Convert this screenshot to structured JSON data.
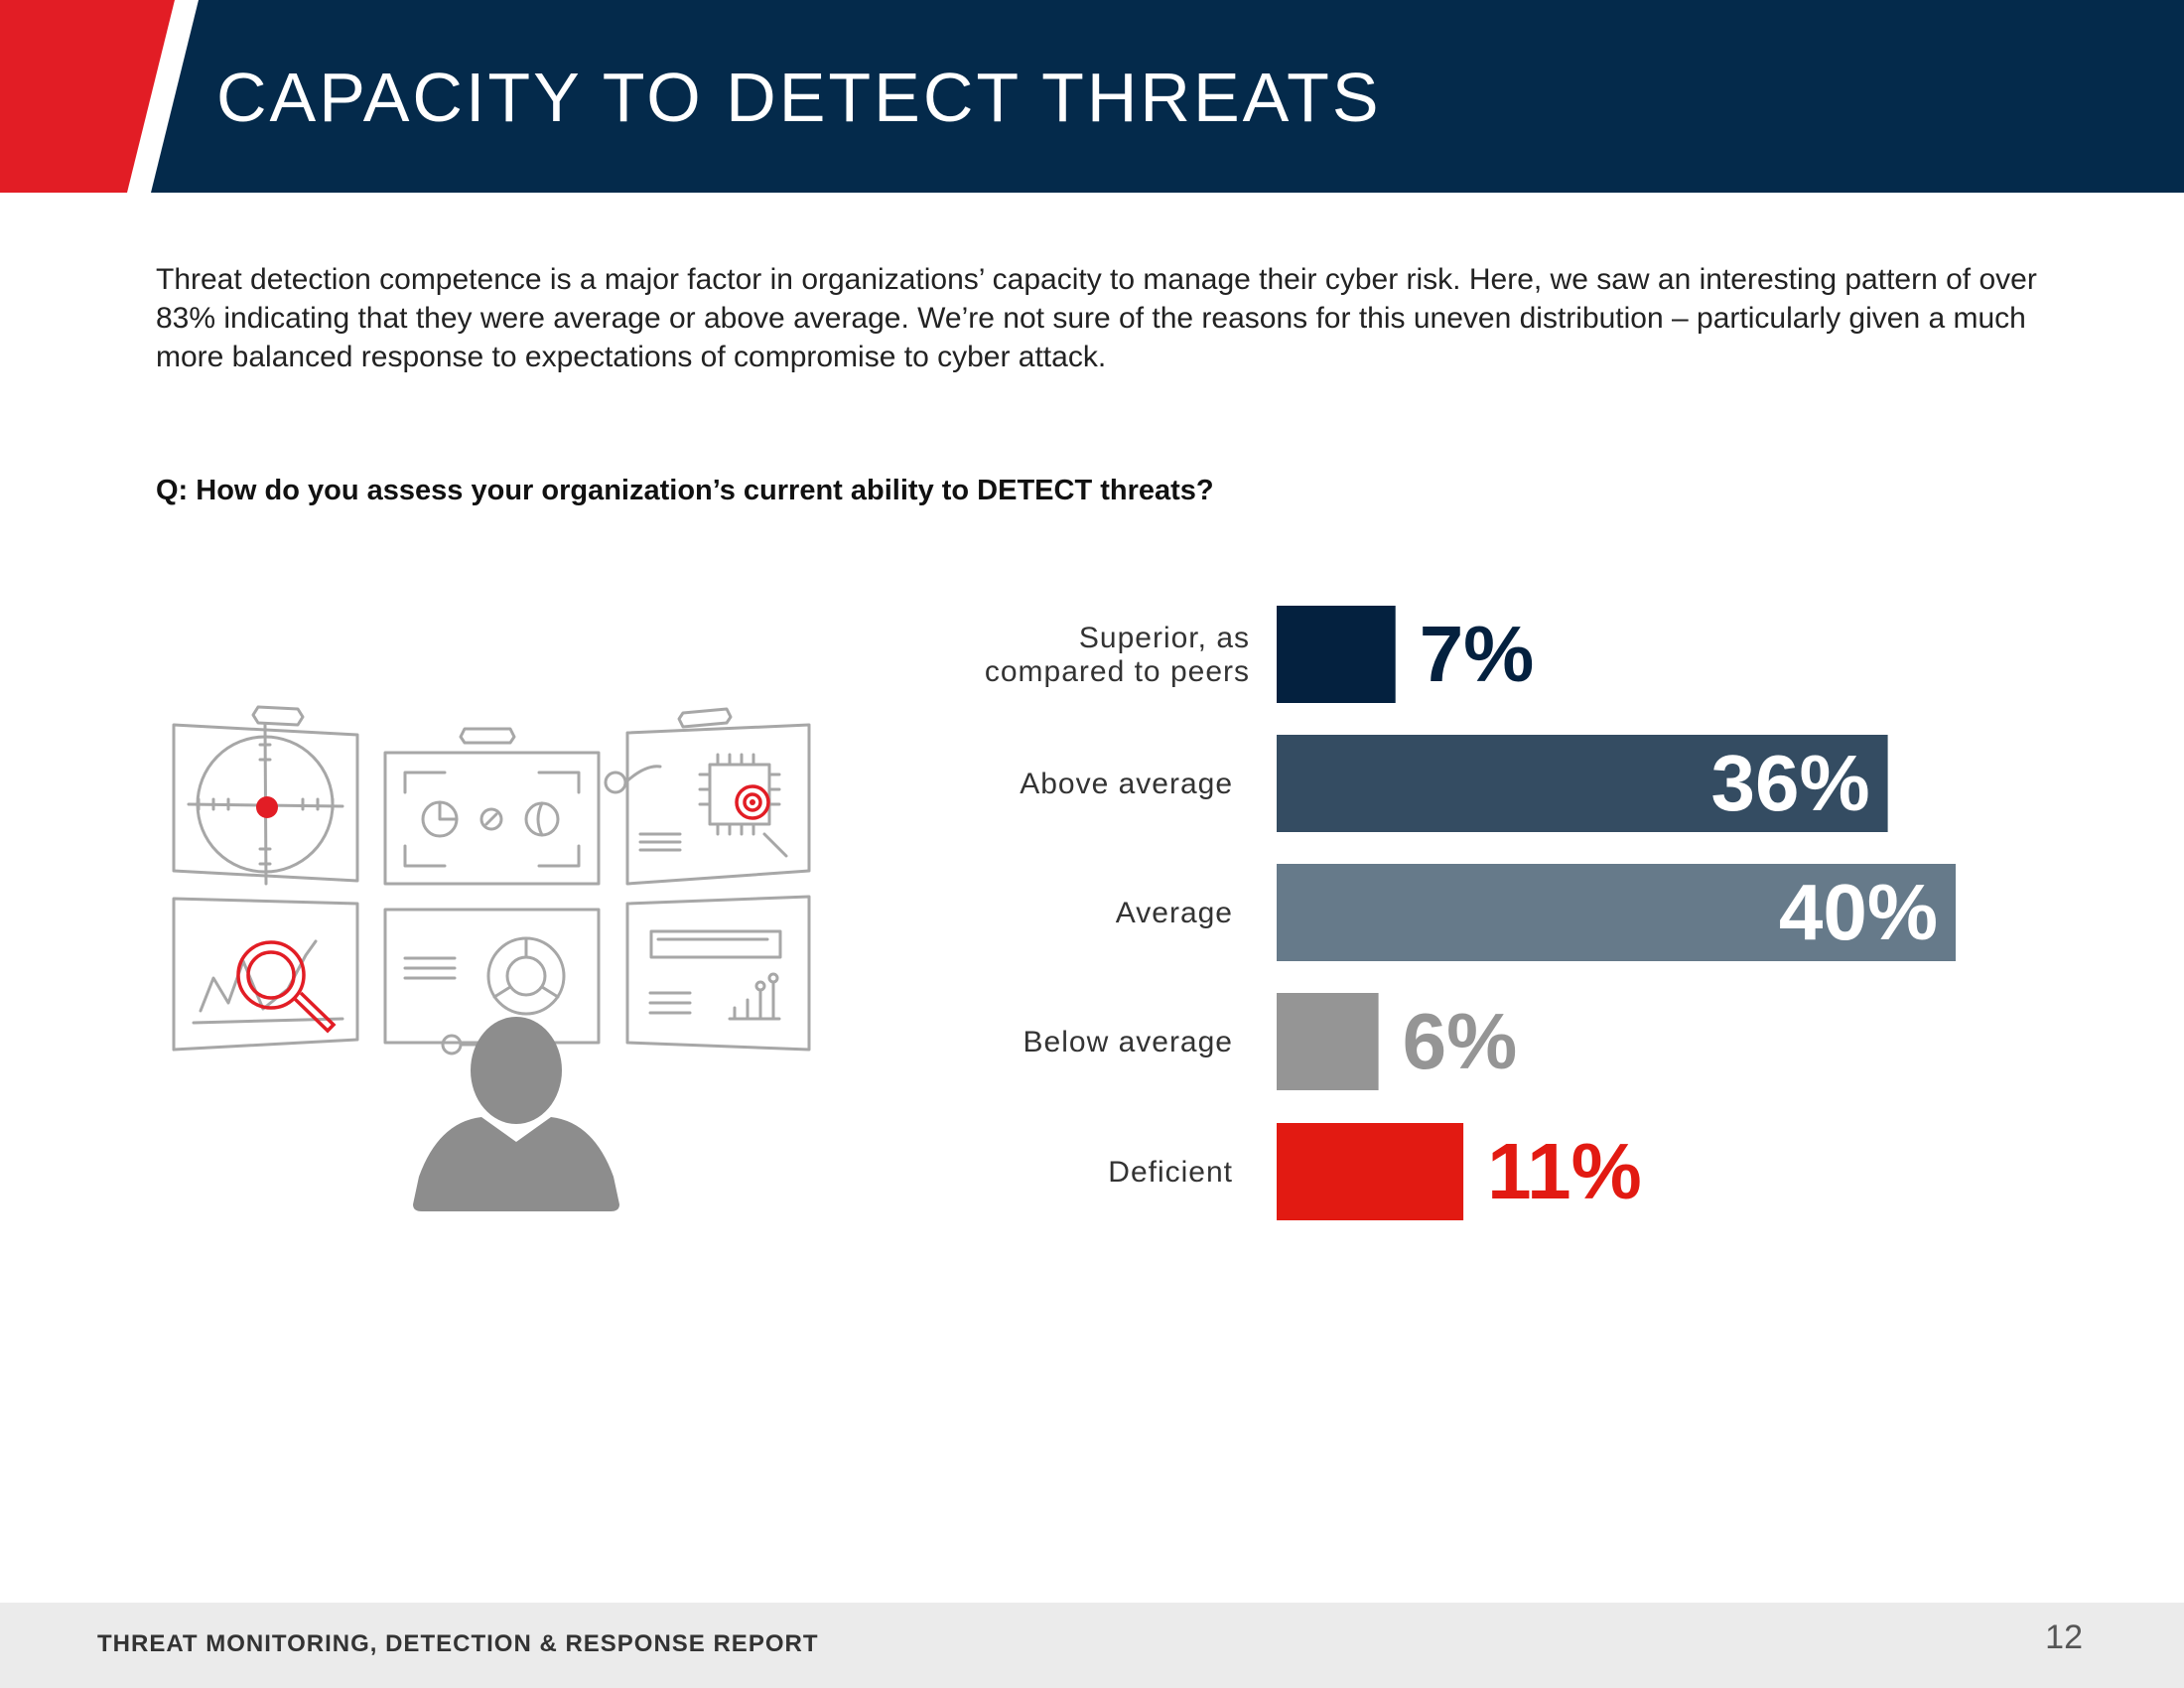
{
  "header": {
    "title": "CAPACITY TO DETECT THREATS",
    "accent_color": "#e21d25",
    "bar_color": "#042a4b"
  },
  "intro": "Threat detection competence is a major factor in organizations’ capacity to manage their cyber risk. Here, we saw an interesting pattern of over 83% indicating that they were average or above average. We’re not sure of the reasons for this uneven distribution – particularly given a much more balanced response to expectations of compromise to cyber attack.",
  "question": "Q: How do you assess your organization’s current ability to DETECT threats?",
  "illustration": {
    "icon": "analyst-monitoring-screens-icon"
  },
  "chart_data": {
    "type": "bar",
    "orientation": "horizontal",
    "title": "Q: How do you assess your organization’s current ability to DETECT threats?",
    "categories": [
      "Superior, as compared to peers",
      "Above average",
      "Average",
      "Below average",
      "Deficient"
    ],
    "category_lines": [
      [
        "Superior, as",
        "compared to peers"
      ],
      [
        "Above average"
      ],
      [
        "Average"
      ],
      [
        "Below average"
      ],
      [
        "Deficient"
      ]
    ],
    "values": [
      7,
      36,
      40,
      6,
      11
    ],
    "value_labels": [
      "7%",
      "36%",
      "40%",
      "6%",
      "11%"
    ],
    "colors": [
      "#04213f",
      "#344c62",
      "#667a8a",
      "#959595",
      "#e21a12"
    ],
    "label_inside": [
      false,
      true,
      true,
      false,
      false
    ],
    "unit": "%",
    "xlabel": "",
    "ylabel": "",
    "xlim": [
      0,
      40
    ],
    "grid": false,
    "legend": "none"
  },
  "footer": {
    "report_title": "THREAT MONITORING, DETECTION & RESPONSE REPORT",
    "page_number": "12"
  }
}
